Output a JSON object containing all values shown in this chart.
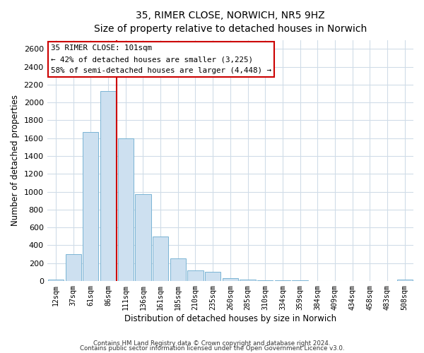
{
  "title": "35, RIMER CLOSE, NORWICH, NR5 9HZ",
  "subtitle": "Size of property relative to detached houses in Norwich",
  "xlabel": "Distribution of detached houses by size in Norwich",
  "ylabel": "Number of detached properties",
  "bin_labels": [
    "12sqm",
    "37sqm",
    "61sqm",
    "86sqm",
    "111sqm",
    "136sqm",
    "161sqm",
    "185sqm",
    "210sqm",
    "235sqm",
    "260sqm",
    "285sqm",
    "310sqm",
    "334sqm",
    "359sqm",
    "384sqm",
    "409sqm",
    "434sqm",
    "458sqm",
    "483sqm",
    "508sqm"
  ],
  "bar_values": [
    20,
    300,
    1670,
    2130,
    1600,
    970,
    500,
    250,
    120,
    100,
    35,
    15,
    5,
    5,
    5,
    3,
    2,
    2,
    2,
    2,
    15
  ],
  "bar_color": "#cde0f0",
  "bar_edge_color": "#7ab4d4",
  "red_line_index": 3.5,
  "highlight_line_color": "#cc0000",
  "annotation_title": "35 RIMER CLOSE: 101sqm",
  "annotation_line1": "← 42% of detached houses are smaller (3,225)",
  "annotation_line2": "58% of semi-detached houses are larger (4,448) →",
  "annotation_box_facecolor": "#ffffff",
  "annotation_box_edgecolor": "#cc0000",
  "ylim": [
    0,
    2700
  ],
  "yticks": [
    0,
    200,
    400,
    600,
    800,
    1000,
    1200,
    1400,
    1600,
    1800,
    2000,
    2200,
    2400,
    2600
  ],
  "footer1": "Contains HM Land Registry data © Crown copyright and database right 2024.",
  "footer2": "Contains public sector information licensed under the Open Government Licence v3.0.",
  "bg_color": "#ffffff",
  "plot_bg_color": "#ffffff",
  "grid_color": "#d0dce8"
}
